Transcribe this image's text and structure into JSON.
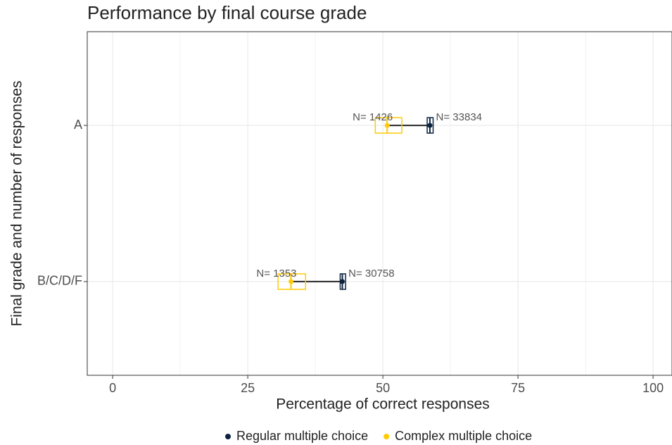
{
  "chart_data": {
    "type": "dumbbell",
    "title": "Performance by final course grade",
    "x_label": "Percentage of correct responses",
    "y_label": "Final grade and number of responses",
    "categories": [
      "A",
      "B/C/D/F"
    ],
    "series": [
      {
        "name": "Regular multiple choice",
        "color": "#0c2340",
        "values": [
          58.7,
          42.5
        ],
        "lower": [
          58.2,
          42.1
        ],
        "upper": [
          59.3,
          43.1
        ],
        "n_labels": [
          "N= 33834",
          "N= 30758"
        ]
      },
      {
        "name": "Complex multiple choice",
        "color": "#ffcb05",
        "values": [
          50.8,
          33.0
        ],
        "lower": [
          48.6,
          30.6
        ],
        "upper": [
          53.5,
          35.7
        ],
        "n_labels": [
          "N= 1426",
          "N= 1353"
        ]
      }
    ],
    "xlim": [
      -4.7,
      103.5
    ],
    "xticks": [
      0,
      25,
      50,
      75,
      100
    ],
    "xminorticks": [
      12.5,
      37.5,
      62.5,
      87.5
    ],
    "grid": true,
    "legend": "bottom"
  }
}
